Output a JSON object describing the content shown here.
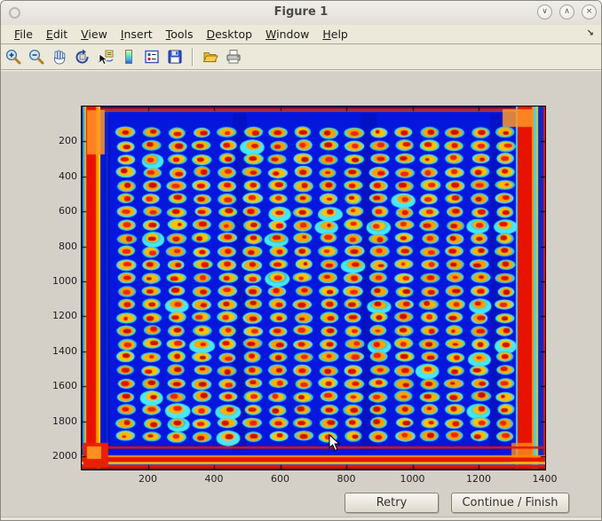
{
  "window": {
    "title": "Figure 1",
    "controls": [
      {
        "name": "minimize",
        "glyph": "∨"
      },
      {
        "name": "maximize",
        "glyph": "∧"
      },
      {
        "name": "close",
        "glyph": "×"
      }
    ]
  },
  "menu": {
    "items": [
      "File",
      "Edit",
      "View",
      "Insert",
      "Tools",
      "Desktop",
      "Window",
      "Help"
    ],
    "dock_glyph": "↘"
  },
  "toolbar": {
    "buttons": [
      "zoom-in",
      "zoom-out",
      "pan",
      "rotate-3d",
      "data-cursor",
      "insert-colorbar",
      "insert-legend",
      "save-figure",
      "separator",
      "open-file",
      "print-figure"
    ]
  },
  "buttons": {
    "retry_label": "Retry",
    "continue_label": "Continue / Finish"
  },
  "chart_data": {
    "type": "heatmap",
    "title": "",
    "xlabel": "",
    "ylabel": "",
    "x_ticks": [
      200,
      400,
      600,
      800,
      1000,
      1200,
      1400
    ],
    "y_ticks": [
      200,
      400,
      600,
      800,
      1000,
      1200,
      1400,
      1600,
      1800,
      2000
    ],
    "x_range": [
      0,
      1400
    ],
    "y_range": [
      0,
      2080
    ],
    "y_axis_direction": "reversed",
    "colormap": "jet",
    "content": "Scanned plate imaged with jet colormap: 24-row x 16-column grid of assay spots (cyan halo, yellow-orange body, red core) on a deep blue background, saturated red border around the plate edges",
    "spot_grid": {
      "rows": 24,
      "cols": 16,
      "x_start": 135,
      "y_start": 150,
      "x_pitch": 76.4,
      "y_pitch": 75.5
    },
    "colors": {
      "background": "#0517dc",
      "halo": "#3ed9f2",
      "body": "#ffb400",
      "core": "#e11300",
      "border_red": "#e81200",
      "corner_orange": "#ff8e00",
      "edge_cyan": "#38d8e8",
      "edge_yellow": "#ffd400"
    }
  }
}
